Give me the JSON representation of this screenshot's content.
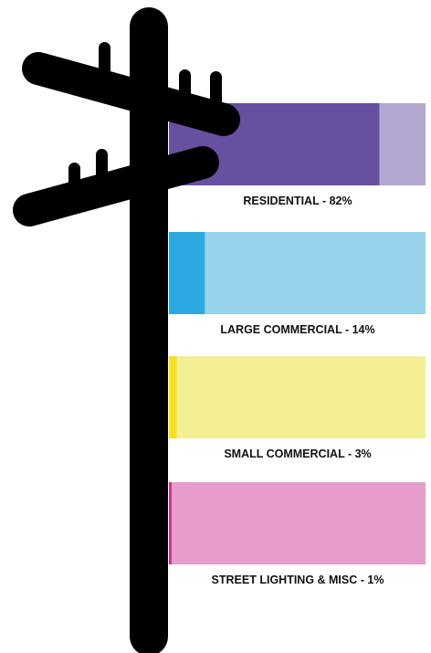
{
  "chart_data": {
    "type": "bar",
    "orientation": "horizontal",
    "unit": "%",
    "categories": [
      "RESIDENTIAL",
      "LARGE COMMERCIAL",
      "SMALL COMMERCIAL",
      "STREET LIGHTING & MISC"
    ],
    "values": [
      82,
      14,
      3,
      1
    ],
    "labels": [
      "RESIDENTIAL - 82%",
      "LARGE COMMERCIAL - 14%",
      "SMALL COMMERCIAL - 3%",
      "STREET LIGHTING & MISC - 1%"
    ],
    "xlim": [
      0,
      100
    ],
    "grid": false,
    "legend": "none",
    "colors": [
      {
        "fill": "#66509f",
        "track": "#b2a7d0"
      },
      {
        "fill": "#2aaae0",
        "track": "#98d3ec"
      },
      {
        "fill": "#f7e11f",
        "track": "#f4ee94"
      },
      {
        "fill": "#d2348a",
        "track": "#e89ccb"
      }
    ]
  },
  "decoration": {
    "pole_icon": "utility-pole-icon",
    "pole_color": "#000000"
  }
}
